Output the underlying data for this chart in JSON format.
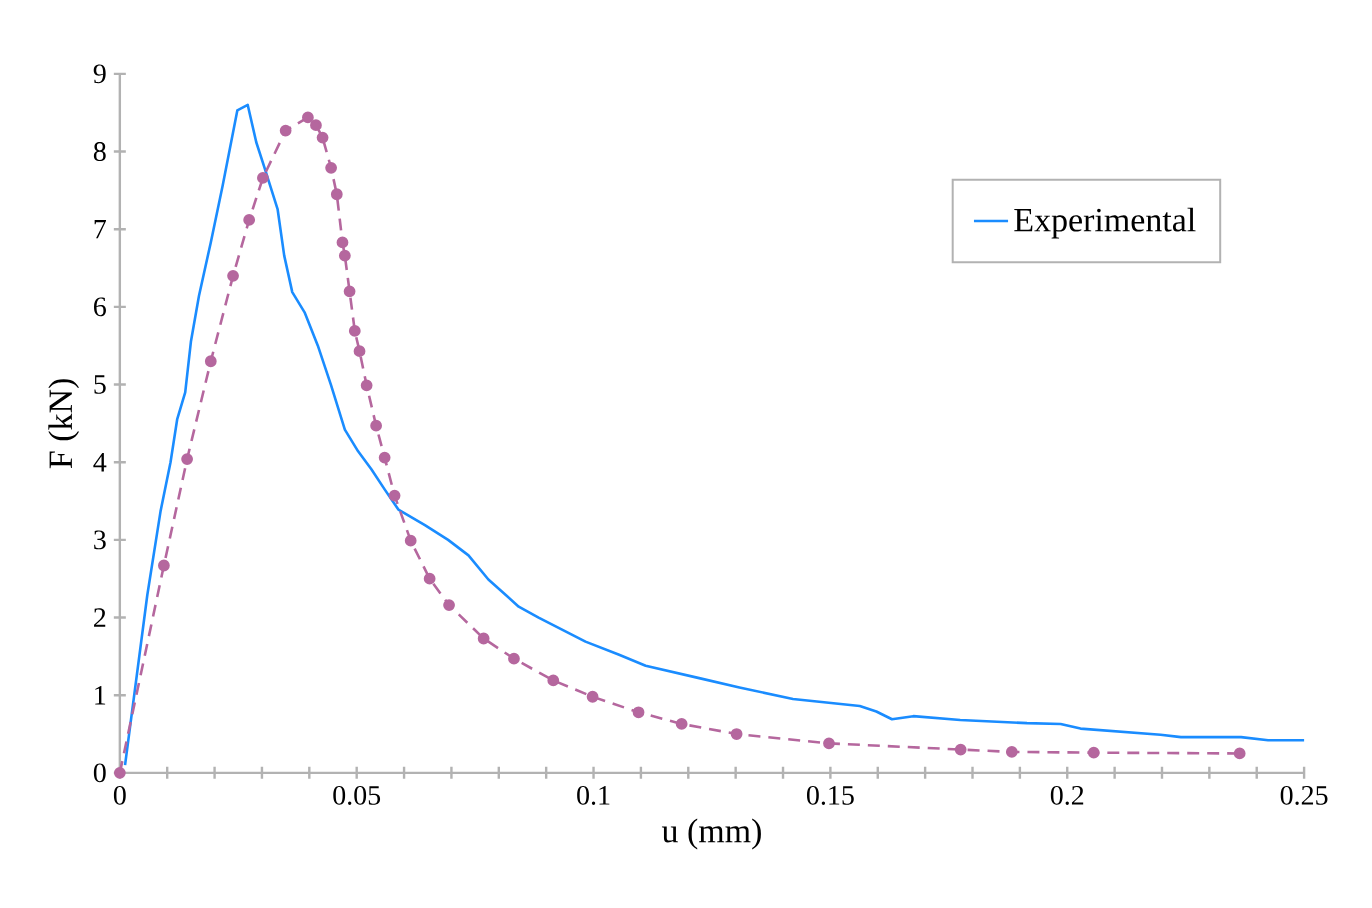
{
  "chart_data": {
    "type": "line",
    "xlabel": "u (mm)",
    "ylabel": "F (kN)",
    "xlim": [
      0,
      0.25
    ],
    "ylim": [
      0,
      9
    ],
    "xticks": [
      0,
      0.05,
      0.1,
      0.15,
      0.2,
      0.25
    ],
    "yticks": [
      0,
      1,
      2,
      3,
      4,
      5,
      6,
      7,
      8,
      9
    ],
    "grid": false,
    "legend": "top right",
    "series": [
      {
        "name": "Experimental",
        "color": "#1a8cff",
        "marker": "none",
        "line_style": "solid",
        "x": [
          0.0011,
          0.0058,
          0.0086,
          0.0107,
          0.0121,
          0.0138,
          0.015,
          0.0167,
          0.0192,
          0.0217,
          0.0248,
          0.027,
          0.0288,
          0.0305,
          0.0333,
          0.0347,
          0.0364,
          0.039,
          0.0418,
          0.0446,
          0.0475,
          0.0503,
          0.0531,
          0.0559,
          0.0588,
          0.0644,
          0.0693,
          0.0736,
          0.0778,
          0.0842,
          0.0884,
          0.0983,
          0.1054,
          0.111,
          0.1223,
          0.1308,
          0.1421,
          0.1562,
          0.1597,
          0.163,
          0.1675,
          0.1774,
          0.1915,
          0.1986,
          0.2028,
          0.2197,
          0.224,
          0.2367,
          0.2424,
          0.25
        ],
        "values": [
          0.1,
          2.29,
          3.37,
          4.0,
          4.55,
          4.9,
          5.55,
          6.14,
          6.83,
          7.56,
          8.53,
          8.6,
          8.12,
          7.8,
          7.26,
          6.66,
          6.19,
          5.93,
          5.5,
          4.99,
          4.42,
          4.14,
          3.91,
          3.65,
          3.39,
          3.19,
          3.0,
          2.8,
          2.49,
          2.14,
          2.0,
          1.69,
          1.52,
          1.38,
          1.22,
          1.1,
          0.95,
          0.86,
          0.79,
          0.69,
          0.73,
          0.68,
          0.64,
          0.63,
          0.57,
          0.49,
          0.46,
          0.46,
          0.42,
          0.42
        ]
      },
      {
        "color": "#b5679e",
        "marker": "circle",
        "line_style": "dashed",
        "x": [
          0,
          0.0093,
          0.0142,
          0.0192,
          0.0239,
          0.0273,
          0.0302,
          0.035,
          0.0397,
          0.0414,
          0.0428,
          0.0446,
          0.0458,
          0.047,
          0.0475,
          0.0485,
          0.0496,
          0.0506,
          0.0521,
          0.0541,
          0.0559,
          0.058,
          0.0614,
          0.0654,
          0.0695,
          0.0768,
          0.0832,
          0.0915,
          0.0998,
          0.1095,
          0.1186,
          0.1302,
          0.1497,
          0.1775,
          0.1883,
          0.2056,
          0.2364
        ],
        "values": [
          0,
          2.67,
          4.04,
          5.3,
          6.4,
          7.12,
          7.66,
          8.27,
          8.44,
          8.34,
          8.18,
          7.79,
          7.45,
          6.83,
          6.66,
          6.2,
          5.69,
          5.43,
          4.99,
          4.47,
          4.06,
          3.57,
          2.99,
          2.5,
          2.16,
          1.73,
          1.47,
          1.19,
          0.98,
          0.78,
          0.63,
          0.5,
          0.38,
          0.3,
          0.27,
          0.26,
          0.25
        ]
      }
    ]
  }
}
